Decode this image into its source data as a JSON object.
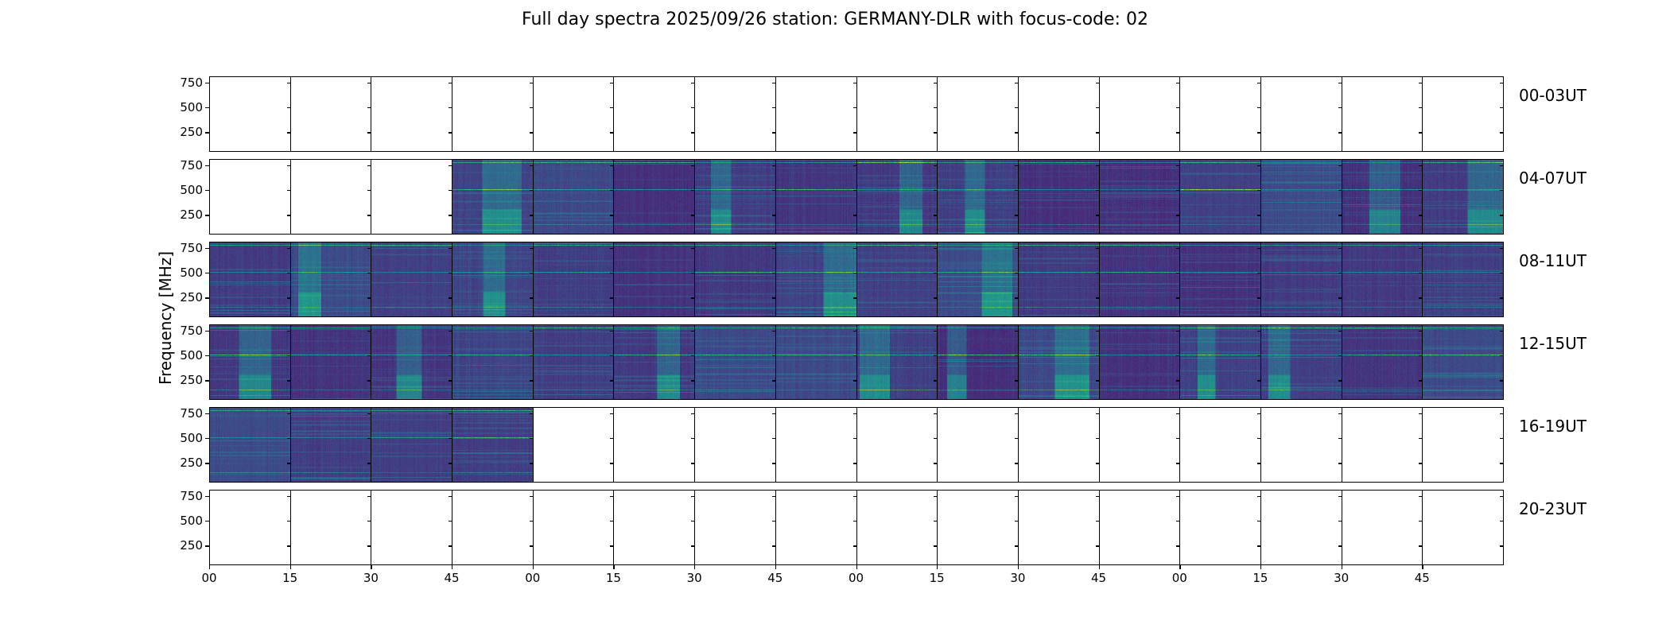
{
  "chart_data": {
    "type": "heatmap",
    "title": "Full day spectra 2025/09/26 station: GERMANY-DLR with focus-code: 02",
    "ylabel": "Frequency [MHz]",
    "xlabel": "",
    "ylim": [
      45,
      805
    ],
    "yticks": [
      250,
      500,
      750
    ],
    "ytick_labels": [
      "250",
      "500",
      "750"
    ],
    "xtick_labels": [
      "00",
      "15",
      "30",
      "45",
      "00",
      "15",
      "30",
      "45",
      "00",
      "15",
      "30",
      "45",
      "00",
      "15",
      "30",
      "45"
    ],
    "colormap": "viridis",
    "row_labels": [
      "00-03UT",
      "04-07UT",
      "08-11UT",
      "12-15UT",
      "16-19UT",
      "20-23UT"
    ],
    "panels_per_row": 16,
    "panel_minutes": 15,
    "data_present": [
      [
        0,
        0,
        0,
        0,
        0,
        0,
        0,
        0,
        0,
        0,
        0,
        0,
        0,
        0,
        0,
        0
      ],
      [
        0,
        0,
        0,
        1,
        1,
        1,
        1,
        1,
        1,
        1,
        1,
        1,
        1,
        1,
        1,
        1
      ],
      [
        1,
        1,
        1,
        1,
        1,
        1,
        1,
        1,
        1,
        1,
        1,
        1,
        1,
        1,
        1,
        1
      ],
      [
        1,
        1,
        1,
        1,
        1,
        1,
        1,
        1,
        1,
        1,
        1,
        1,
        1,
        1,
        1,
        1
      ],
      [
        1,
        1,
        1,
        1,
        0,
        0,
        0,
        0,
        0,
        0,
        0,
        0,
        0,
        0,
        0,
        0
      ],
      [
        0,
        0,
        0,
        0,
        0,
        0,
        0,
        0,
        0,
        0,
        0,
        0,
        0,
        0,
        0,
        0
      ]
    ],
    "persistent_emission_lines_mhz": [
      780,
      500,
      140
    ]
  }
}
